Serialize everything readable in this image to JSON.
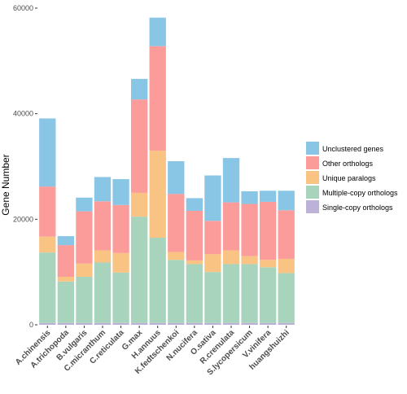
{
  "chart_data": {
    "type": "bar",
    "stacked": true,
    "title": "",
    "xlabel": "",
    "ylabel": "Gene Number",
    "ylim": [
      0,
      60000
    ],
    "yticks": [
      0,
      20000,
      40000,
      60000
    ],
    "ytick_labels": [
      "0",
      "20000",
      "40000",
      "60000"
    ],
    "grid": false,
    "legend_position": "right",
    "categories": [
      "A.chinensis",
      "A.trichopoda",
      "B.vulgaris",
      "C.micranthum",
      "C.reticulata",
      "G.max",
      "H.annuus",
      "K.fedtschenkoi",
      "N.nucifera",
      "O.sativa",
      "R.crenulata",
      "S.lycopersicum",
      "V.vinifera",
      "huangshuizhi"
    ],
    "series": [
      {
        "name": "Single-copy orthologs",
        "color": "#bcb1d6",
        "values": [
          350,
          350,
          350,
          350,
          350,
          350,
          350,
          350,
          350,
          350,
          350,
          350,
          350,
          350
        ]
      },
      {
        "name": "Multiple-copy orthologs",
        "color": "#a8d4bd",
        "values": [
          13350,
          7850,
          8750,
          11450,
          9550,
          20150,
          16150,
          11950,
          11150,
          9650,
          11150,
          11150,
          10550,
          9450
        ]
      },
      {
        "name": "Unique paralogs",
        "color": "#f9c384",
        "values": [
          3000,
          900,
          2500,
          2300,
          3700,
          4500,
          16500,
          1500,
          700,
          3400,
          2600,
          1500,
          1400,
          2700
        ]
      },
      {
        "name": "Other orthologs",
        "color": "#fb9c9a",
        "values": [
          9500,
          6000,
          9900,
          9300,
          9100,
          17700,
          19800,
          11000,
          9400,
          6300,
          9100,
          9900,
          11000,
          9200
        ]
      },
      {
        "name": "Unclustered genes",
        "color": "#89c5e5",
        "values": [
          12900,
          1700,
          2600,
          4600,
          4900,
          3900,
          5400,
          6200,
          2400,
          8600,
          8400,
          2400,
          2100,
          3700
        ]
      }
    ],
    "legend_order": [
      "Unclustered genes",
      "Other orthologs",
      "Unique paralogs",
      "Multiple-copy orthologs",
      "Single-copy orthologs"
    ]
  }
}
